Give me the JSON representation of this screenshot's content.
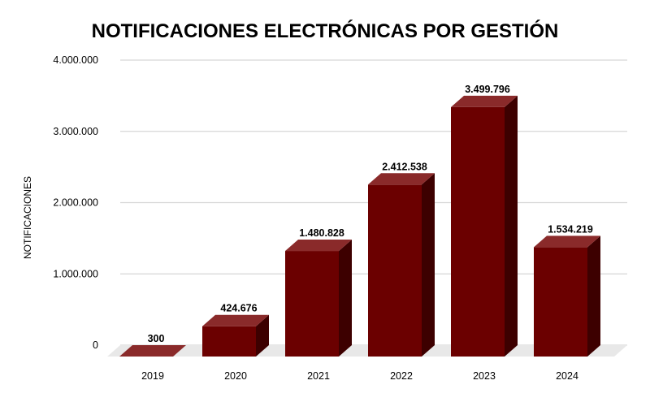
{
  "chart_data": {
    "type": "bar",
    "title": "NOTIFICACIONES ELECTRÓNICAS POR GESTIÓN",
    "ylabel": "NOTIFICACIONES",
    "xlabel": "",
    "categories": [
      "2019",
      "2020",
      "2021",
      "2022",
      "2023",
      "2024"
    ],
    "values": [
      300,
      424676,
      1480828,
      2412538,
      3499796,
      1534219
    ],
    "data_labels": [
      "300",
      "424.676",
      "1.480.828",
      "2.412.538",
      "3.499.796",
      "1.534.219"
    ],
    "ylim": [
      0,
      4000000
    ],
    "y_ticks": [
      0,
      1000000,
      2000000,
      3000000,
      4000000
    ],
    "y_tick_labels": [
      "0",
      "1.000.000",
      "2.000.000",
      "3.000.000",
      "4.000.000"
    ],
    "grid": true,
    "style": "3d-bar",
    "colors": {
      "bar_front": "#6b0000",
      "bar_side": "#3d0000",
      "bar_top": "#8a2a2a",
      "floor": "#e8e8e8",
      "grid": "#d6d6d6"
    }
  }
}
